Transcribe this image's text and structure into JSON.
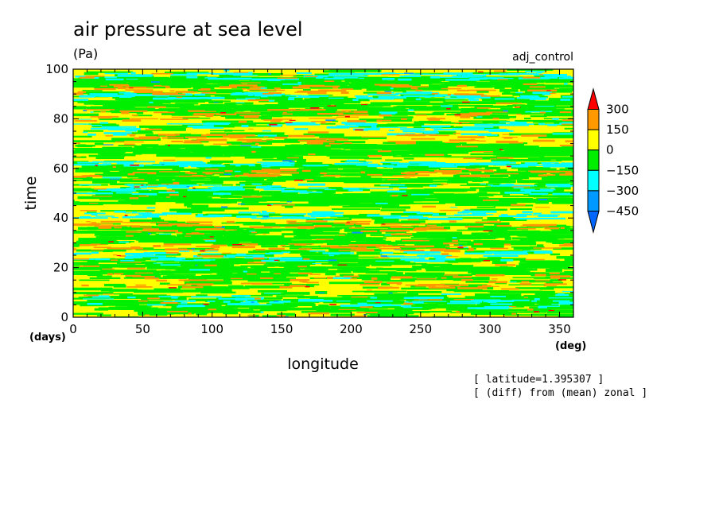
{
  "chart_data": {
    "type": "heatmap",
    "title": "air pressure at sea level",
    "units": "(Pa)",
    "run_label": "adj_control",
    "xlabel": "longitude",
    "ylabel": "time",
    "x_unit": "(deg)",
    "y_unit": "(days)",
    "xlim": [
      0,
      360
    ],
    "ylim": [
      0,
      100
    ],
    "xticks": [
      0,
      50,
      100,
      150,
      200,
      250,
      300,
      350
    ],
    "yticks": [
      0,
      20,
      40,
      60,
      80,
      100
    ],
    "colorbar": {
      "levels": [
        300,
        150,
        0,
        -150,
        -300,
        -450
      ],
      "level_labels": [
        "300",
        "150",
        "0",
        "−150",
        "−300",
        "−450"
      ],
      "colors": [
        "#ff0000",
        "#ff9900",
        "#ffff00",
        "#00ee00",
        "#00ffff",
        "#0099ff",
        "#0066ff"
      ]
    },
    "annotations": [
      "[ latitude=1.395307 ]",
      "[ (diff) from (mean) zonal ]"
    ]
  }
}
